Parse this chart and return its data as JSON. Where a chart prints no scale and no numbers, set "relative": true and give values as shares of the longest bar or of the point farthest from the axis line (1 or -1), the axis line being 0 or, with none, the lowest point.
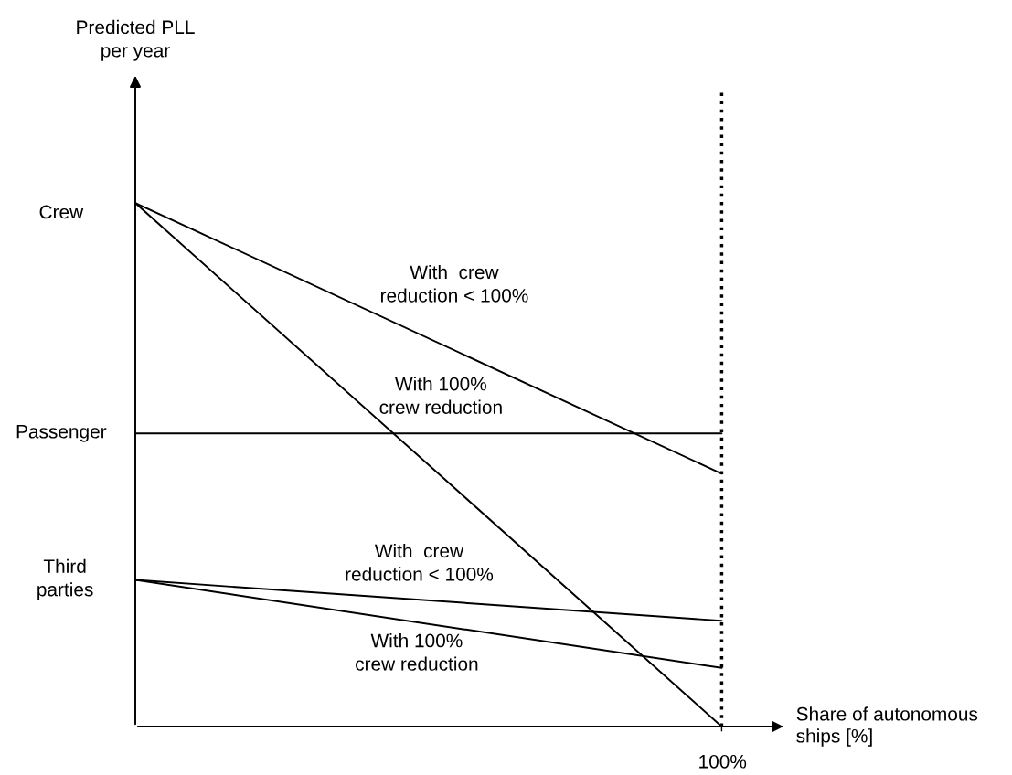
{
  "chart_data": {
    "type": "line",
    "relative": true,
    "xlabel": "Share of autonomous\nships [%]",
    "categories": [
      null,
      null
    ],
    "series": [
      {
        "name": "With  crew\nreduction < 100%",
        "color": "#000000",
        "values": [
          1,
          0.483
        ]
      },
      {
        "name": "With 100%\ncrew reduction",
        "color": "#000000",
        "values": [
          1,
          0
        ]
      },
      {
        "color": "#000000",
        "values": [
          0.56,
          0.56
        ]
      },
      {
        "name": "With  crew\nreduction < 100%",
        "color": "#000000",
        "values": [
          0.28,
          0.202
        ]
      },
      {
        "name": "With 100%\ncrew reduction",
        "color": "#000000",
        "values": [
          0.28,
          0.112
        ]
      }
    ],
    "annotations": [
      "Predicted PLL\nper year",
      "Crew",
      "Passenger",
      "Third\nparties",
      "100%"
    ]
  }
}
